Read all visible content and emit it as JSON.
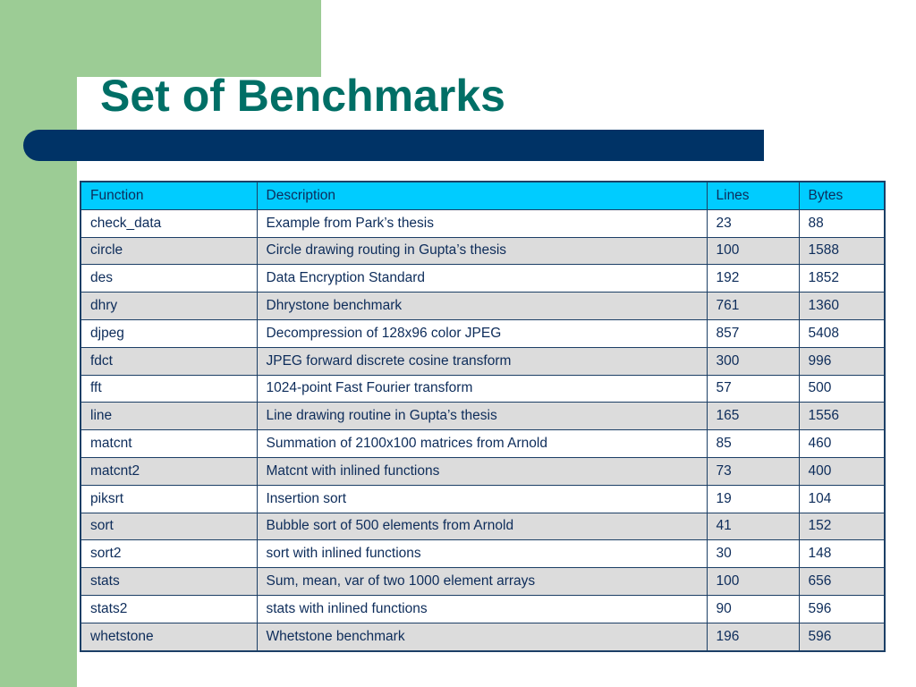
{
  "slide": {
    "title": "Set of Benchmarks"
  },
  "colors": {
    "accent_green": "#9ccc95",
    "title_color": "#006f66",
    "bar_navy": "#003366",
    "header_cyan": "#00ccff",
    "row_gray": "#dcdcdc"
  },
  "table": {
    "headers": [
      "Function",
      "Description",
      "Lines",
      "Bytes"
    ],
    "rows": [
      [
        "check_data",
        "Example from Park’s thesis",
        "23",
        "88"
      ],
      [
        "circle",
        "Circle drawing routing in Gupta’s thesis",
        "100",
        "1588"
      ],
      [
        "des",
        "Data Encryption Standard",
        "192",
        "1852"
      ],
      [
        "dhry",
        "Dhrystone benchmark",
        "761",
        "1360"
      ],
      [
        "djpeg",
        "Decompression of 128x96 color JPEG",
        "857",
        "5408"
      ],
      [
        "fdct",
        "JPEG forward discrete cosine transform",
        "300",
        "996"
      ],
      [
        "fft",
        "1024-point Fast Fourier transform",
        "57",
        "500"
      ],
      [
        "line",
        "Line drawing routine in Gupta’s thesis",
        "165",
        "1556"
      ],
      [
        "matcnt",
        "Summation of 2100x100 matrices from Arnold",
        "85",
        "460"
      ],
      [
        "matcnt2",
        "Matcnt with inlined functions",
        "73",
        "400"
      ],
      [
        "piksrt",
        "Insertion sort",
        "19",
        "104"
      ],
      [
        "sort",
        "Bubble sort of 500 elements from Arnold",
        "41",
        "152"
      ],
      [
        "sort2",
        "sort with inlined functions",
        "30",
        "148"
      ],
      [
        "stats",
        "Sum, mean, var of two 1000 element arrays",
        "100",
        "656"
      ],
      [
        "stats2",
        "stats with inlined functions",
        "90",
        "596"
      ],
      [
        "whetstone",
        "Whetstone benchmark",
        "196",
        "596"
      ]
    ]
  }
}
